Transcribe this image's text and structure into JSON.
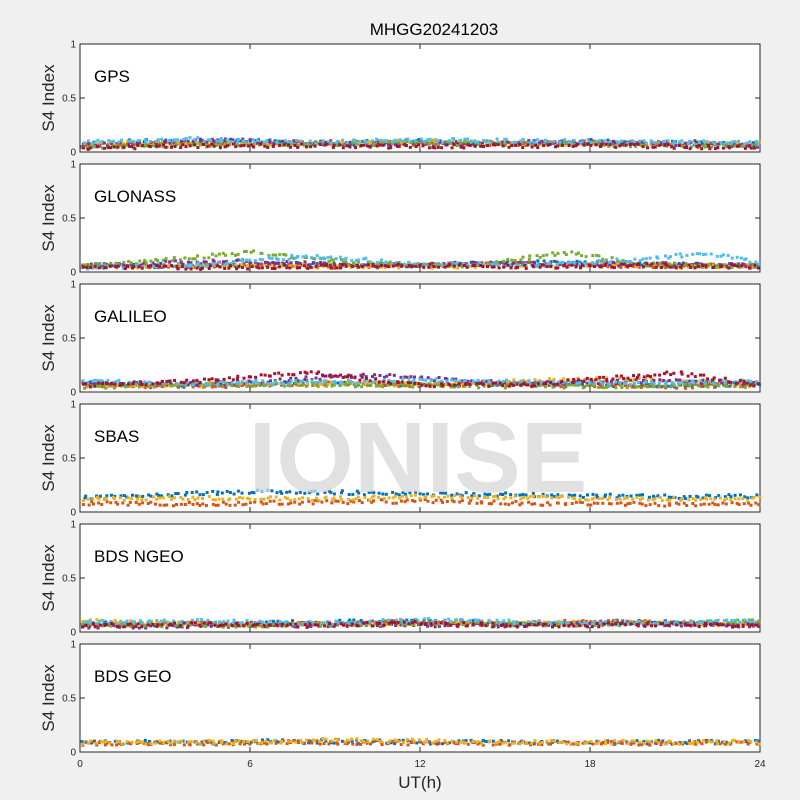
{
  "chart_data": {
    "type": "scatter",
    "title": "MHGG20241203",
    "xlabel": "UT(h)",
    "xlim": [
      0,
      24
    ],
    "xticks": [
      "0",
      "6",
      "12",
      "18",
      "24"
    ],
    "ylim": [
      0,
      1
    ],
    "yticks": [
      "0",
      "0.5",
      "1"
    ],
    "watermark": "IONISE",
    "colors": [
      "#0072BD",
      "#D95319",
      "#EDB120",
      "#7E2F8E",
      "#77AC30",
      "#4DBEEE",
      "#A2142F"
    ],
    "panels": [
      {
        "label": "GPS",
        "ylabel": "S4 Index",
        "series": [
          {
            "values_t": [
              0,
              2,
              4,
              6,
              8,
              10,
              12,
              14,
              16,
              18,
              20,
              22,
              24
            ],
            "values_s4": [
              0.07,
              0.1,
              0.09,
              0.1,
              0.08,
              0.09,
              0.1,
              0.08,
              0.09,
              0.1,
              0.08,
              0.09,
              0.07
            ]
          },
          {
            "values_t": [
              0,
              3,
              6,
              9,
              12,
              15,
              18,
              21,
              24
            ],
            "values_s4": [
              0.06,
              0.08,
              0.07,
              0.09,
              0.08,
              0.07,
              0.09,
              0.08,
              0.06
            ]
          },
          {
            "values_t": [
              0,
              4,
              8,
              12,
              16,
              20,
              24
            ],
            "values_s4": [
              0.08,
              0.09,
              0.07,
              0.1,
              0.08,
              0.07,
              0.09
            ]
          },
          {
            "values_t": [
              0,
              5,
              10,
              15,
              20,
              24
            ],
            "values_s4": [
              0.06,
              0.11,
              0.07,
              0.09,
              0.08,
              0.06
            ]
          },
          {
            "values_t": [
              0,
              6,
              12,
              18,
              24
            ],
            "values_s4": [
              0.05,
              0.07,
              0.08,
              0.07,
              0.05
            ]
          },
          {
            "values_t": [
              0,
              4,
              8,
              12,
              16,
              20,
              24
            ],
            "values_s4": [
              0.09,
              0.12,
              0.09,
              0.11,
              0.1,
              0.09,
              0.08
            ]
          },
          {
            "values_t": [
              0,
              6,
              12,
              18,
              24
            ],
            "values_s4": [
              0.04,
              0.06,
              0.05,
              0.06,
              0.04
            ]
          }
        ]
      },
      {
        "label": "GLONASS",
        "ylabel": "S4 Index",
        "series": [
          {
            "values_t": [
              0,
              4,
              8,
              12,
              16,
              20,
              24
            ],
            "values_s4": [
              0.07,
              0.05,
              0.08,
              0.06,
              0.09,
              0.07,
              0.06
            ]
          },
          {
            "values_t": [
              0,
              3,
              6,
              9,
              12,
              15,
              18,
              21,
              24
            ],
            "values_s4": [
              0.06,
              0.05,
              0.07,
              0.05,
              0.06,
              0.08,
              0.06,
              0.05,
              0.06
            ]
          },
          {
            "values_t": [
              0,
              6,
              12,
              18,
              24
            ],
            "values_s4": [
              0.05,
              0.06,
              0.05,
              0.07,
              0.05
            ]
          },
          {
            "values_t": [
              0,
              5,
              10,
              15,
              20,
              24
            ],
            "values_s4": [
              0.06,
              0.1,
              0.06,
              0.08,
              0.07,
              0.06
            ]
          },
          {
            "values_t": [
              0,
              6,
              10,
              14,
              17,
              20,
              24
            ],
            "values_s4": [
              0.05,
              0.18,
              0.08,
              0.06,
              0.18,
              0.07,
              0.05
            ]
          },
          {
            "values_t": [
              0,
              5,
              8,
              12,
              16,
              20,
              22,
              24
            ],
            "values_s4": [
              0.04,
              0.08,
              0.15,
              0.07,
              0.06,
              0.12,
              0.18,
              0.08
            ]
          },
          {
            "values_t": [
              0,
              4,
              8,
              12,
              16,
              20,
              24
            ],
            "values_s4": [
              0.05,
              0.04,
              0.05,
              0.06,
              0.05,
              0.06,
              0.05
            ]
          }
        ]
      },
      {
        "label": "GALILEO",
        "ylabel": "S4 Index",
        "series": [
          {
            "values_t": [
              0,
              4,
              8,
              12,
              16,
              20,
              24
            ],
            "values_s4": [
              0.08,
              0.06,
              0.09,
              0.07,
              0.08,
              0.06,
              0.07
            ]
          },
          {
            "values_t": [
              0,
              3,
              6,
              9,
              12,
              15,
              18,
              21,
              24
            ],
            "values_s4": [
              0.07,
              0.05,
              0.06,
              0.08,
              0.06,
              0.07,
              0.06,
              0.05,
              0.07
            ]
          },
          {
            "values_t": [
              0,
              6,
              12,
              18,
              24
            ],
            "values_s4": [
              0.06,
              0.08,
              0.07,
              0.12,
              0.08
            ]
          },
          {
            "values_t": [
              0,
              5,
              10,
              15,
              20,
              24
            ],
            "values_s4": [
              0.09,
              0.07,
              0.16,
              0.08,
              0.1,
              0.09
            ]
          },
          {
            "values_t": [
              0,
              6,
              12,
              18,
              24
            ],
            "values_s4": [
              0.05,
              0.07,
              0.06,
              0.05,
              0.06
            ]
          },
          {
            "values_t": [
              0,
              4,
              8,
              12,
              16,
              20,
              24
            ],
            "values_s4": [
              0.1,
              0.08,
              0.09,
              0.11,
              0.09,
              0.08,
              0.1
            ]
          },
          {
            "values_t": [
              0,
              4,
              8,
              12,
              16,
              21,
              24
            ],
            "values_s4": [
              0.06,
              0.1,
              0.18,
              0.06,
              0.07,
              0.18,
              0.06
            ]
          }
        ]
      },
      {
        "label": "SBAS",
        "ylabel": "S4 Index",
        "series": [
          {
            "values_t": [
              0,
              3,
              6,
              9,
              12,
              15,
              18,
              21,
              24
            ],
            "values_s4": [
              0.13,
              0.16,
              0.19,
              0.18,
              0.17,
              0.16,
              0.15,
              0.14,
              0.15
            ]
          },
          {
            "values_t": [
              0,
              4,
              8,
              12,
              16,
              20,
              24
            ],
            "values_s4": [
              0.08,
              0.07,
              0.09,
              0.1,
              0.08,
              0.07,
              0.08
            ]
          },
          {
            "values_t": [
              0,
              4,
              8,
              12,
              16,
              20,
              24
            ],
            "values_s4": [
              0.12,
              0.13,
              0.12,
              0.14,
              0.13,
              0.12,
              0.12
            ]
          }
        ]
      },
      {
        "label": "BDS NGEO",
        "ylabel": "S4 Index",
        "series": [
          {
            "values_t": [
              0,
              4,
              8,
              12,
              16,
              20,
              24
            ],
            "values_s4": [
              0.08,
              0.07,
              0.09,
              0.1,
              0.08,
              0.09,
              0.07
            ]
          },
          {
            "values_t": [
              0,
              3,
              6,
              9,
              12,
              15,
              18,
              21,
              24
            ],
            "values_s4": [
              0.06,
              0.08,
              0.07,
              0.08,
              0.09,
              0.07,
              0.1,
              0.08,
              0.06
            ]
          },
          {
            "values_t": [
              0,
              6,
              12,
              18,
              24
            ],
            "values_s4": [
              0.1,
              0.07,
              0.08,
              0.09,
              0.07
            ]
          },
          {
            "values_t": [
              0,
              5,
              10,
              15,
              20,
              24
            ],
            "values_s4": [
              0.05,
              0.06,
              0.07,
              0.06,
              0.08,
              0.05
            ]
          },
          {
            "values_t": [
              0,
              6,
              12,
              18,
              24
            ],
            "values_s4": [
              0.07,
              0.06,
              0.08,
              0.07,
              0.1
            ]
          },
          {
            "values_t": [
              0,
              4,
              8,
              12,
              16,
              20,
              24
            ],
            "values_s4": [
              0.09,
              0.1,
              0.08,
              0.11,
              0.09,
              0.08,
              0.1
            ]
          },
          {
            "values_t": [
              0,
              4,
              8,
              12,
              16,
              20,
              24
            ],
            "values_s4": [
              0.06,
              0.07,
              0.06,
              0.08,
              0.06,
              0.07,
              0.06
            ]
          }
        ]
      },
      {
        "label": "BDS GEO",
        "ylabel": "S4 Index",
        "series": [
          {
            "values_t": [
              0,
              4,
              8,
              12,
              16,
              20,
              24
            ],
            "values_s4": [
              0.09,
              0.09,
              0.1,
              0.09,
              0.09,
              0.09,
              0.09
            ]
          },
          {
            "values_t": [
              0,
              4,
              8,
              12,
              16,
              20,
              24
            ],
            "values_s4": [
              0.08,
              0.08,
              0.09,
              0.08,
              0.08,
              0.08,
              0.08
            ]
          },
          {
            "values_t": [
              0,
              3,
              6,
              9,
              12,
              15,
              18,
              21,
              24
            ],
            "values_s4": [
              0.09,
              0.09,
              0.09,
              0.11,
              0.1,
              0.09,
              0.09,
              0.09,
              0.09
            ]
          }
        ]
      }
    ]
  }
}
